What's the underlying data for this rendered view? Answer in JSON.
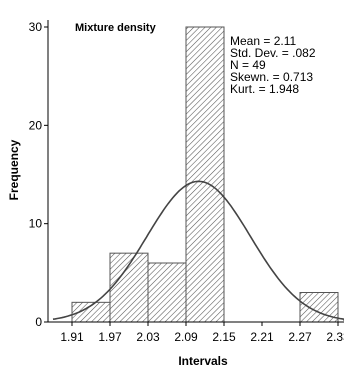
{
  "chart_data": {
    "type": "bar",
    "title": "Mixture density",
    "xlabel": "Intervals",
    "ylabel": "Frequency",
    "x_ticks": [
      "1.91",
      "1.97",
      "2.03",
      "2.09",
      "2.15",
      "2.21",
      "2.27",
      "2.33"
    ],
    "y_ticks": [
      "0",
      "10",
      "20",
      "30"
    ],
    "xlim": [
      1.91,
      2.33
    ],
    "ylim": [
      0,
      30
    ],
    "bins": [
      {
        "from": 1.91,
        "to": 1.97,
        "value": 2
      },
      {
        "from": 1.97,
        "to": 2.03,
        "value": 7
      },
      {
        "from": 2.03,
        "to": 2.09,
        "value": 6
      },
      {
        "from": 2.09,
        "to": 2.15,
        "value": 30
      },
      {
        "from": 2.27,
        "to": 2.33,
        "value": 3
      }
    ],
    "normal_curve": {
      "mean": 2.11,
      "sd": 0.082,
      "n": 49
    },
    "stats": [
      {
        "key": "mean",
        "text": "Mean = 2.11"
      },
      {
        "key": "std",
        "text": "Std. Dev. = .082"
      },
      {
        "key": "n",
        "text": "N = 49"
      },
      {
        "key": "skew",
        "text": "Skewn. = 0.713"
      },
      {
        "key": "kurt",
        "text": "Kurt. = 1.948"
      }
    ],
    "grid": false,
    "fill": "hatched"
  }
}
